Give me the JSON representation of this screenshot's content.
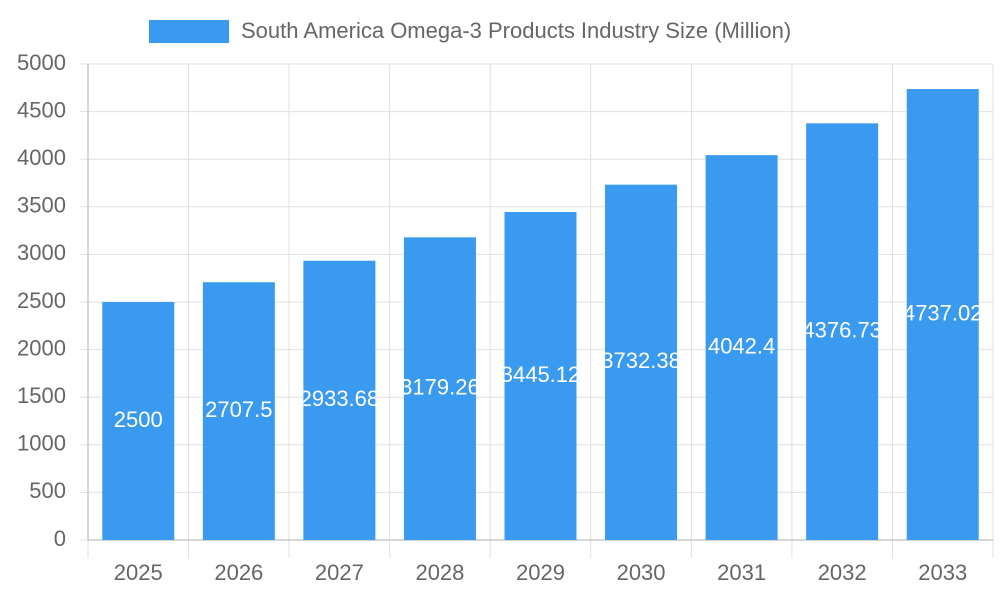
{
  "chart_data": {
    "type": "bar",
    "categories": [
      "2025",
      "2026",
      "2027",
      "2028",
      "2029",
      "2030",
      "2031",
      "2032",
      "2033"
    ],
    "series": [
      {
        "name": "South America Omega-3 Products Industry Size (Million)",
        "color": "#3a9af0",
        "values": [
          2500,
          2707.5,
          2933.68,
          3179.26,
          3445.12,
          3732.38,
          4042.4,
          4376.73,
          4737.02
        ]
      }
    ],
    "ylim": [
      0,
      5000
    ],
    "yticks": [
      0,
      500,
      1000,
      1500,
      2000,
      2500,
      3000,
      3500,
      4000,
      4500,
      5000
    ],
    "grid": true,
    "legend": "top"
  }
}
